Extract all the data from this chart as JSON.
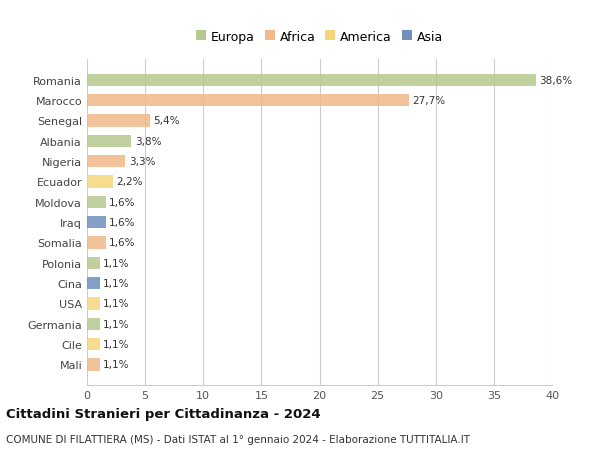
{
  "countries": [
    "Romania",
    "Marocco",
    "Senegal",
    "Albania",
    "Nigeria",
    "Ecuador",
    "Moldova",
    "Iraq",
    "Somalia",
    "Polonia",
    "Cina",
    "USA",
    "Germania",
    "Cile",
    "Mali"
  ],
  "values": [
    38.6,
    27.7,
    5.4,
    3.8,
    3.3,
    2.2,
    1.6,
    1.6,
    1.6,
    1.1,
    1.1,
    1.1,
    1.1,
    1.1,
    1.1
  ],
  "labels": [
    "38,6%",
    "27,7%",
    "5,4%",
    "3,8%",
    "3,3%",
    "2,2%",
    "1,6%",
    "1,6%",
    "1,6%",
    "1,1%",
    "1,1%",
    "1,1%",
    "1,1%",
    "1,1%",
    "1,1%"
  ],
  "colors": [
    "#b5c98e",
    "#f0b989",
    "#f0b989",
    "#b5c98e",
    "#f0b989",
    "#f6d57a",
    "#b5c98e",
    "#6f8fbd",
    "#f0b989",
    "#b5c98e",
    "#6f8fbd",
    "#f6d57a",
    "#b5c98e",
    "#f6d57a",
    "#f0b989"
  ],
  "legend_labels": [
    "Europa",
    "Africa",
    "America",
    "Asia"
  ],
  "legend_colors": [
    "#b5c98e",
    "#f0b989",
    "#f6d57a",
    "#6f8fbd"
  ],
  "title": "Cittadini Stranieri per Cittadinanza - 2024",
  "subtitle": "COMUNE DI FILATTIERA (MS) - Dati ISTAT al 1° gennaio 2024 - Elaborazione TUTTITALIA.IT",
  "xlim": [
    0,
    40
  ],
  "xticks": [
    0,
    5,
    10,
    15,
    20,
    25,
    30,
    35,
    40
  ],
  "bg_color": "#ffffff",
  "grid_color": "#cccccc"
}
